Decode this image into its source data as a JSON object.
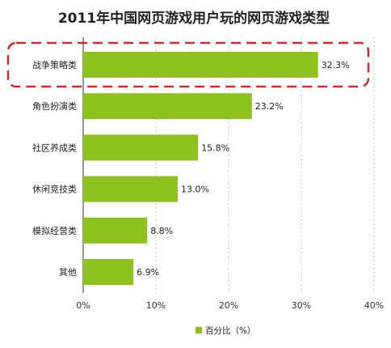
{
  "chart_data": {
    "type": "bar",
    "orientation": "horizontal",
    "title": "2011年中国网页游戏用户玩的网页游戏类型",
    "categories": [
      "战争策略类",
      "角色扮演类",
      "社区养成类",
      "休闲竞技类",
      "模拟经营类",
      "其他"
    ],
    "series": [
      {
        "name": "百分比（%）",
        "values": [
          32.3,
          23.2,
          15.8,
          13.0,
          8.8,
          6.9
        ]
      }
    ],
    "data_labels": [
      "32.3%",
      "23.2%",
      "15.8%",
      "13.0%",
      "8.8%",
      "6.9%"
    ],
    "x_ticks": [
      "0%",
      "10%",
      "20%",
      "30%",
      "40%"
    ],
    "xlim": [
      0,
      40
    ],
    "grid": true,
    "legend_position": "bottom",
    "bar_color": "#8dc21f",
    "highlight_color": "#d62a2a",
    "highlighted_category": "战争策略类"
  }
}
